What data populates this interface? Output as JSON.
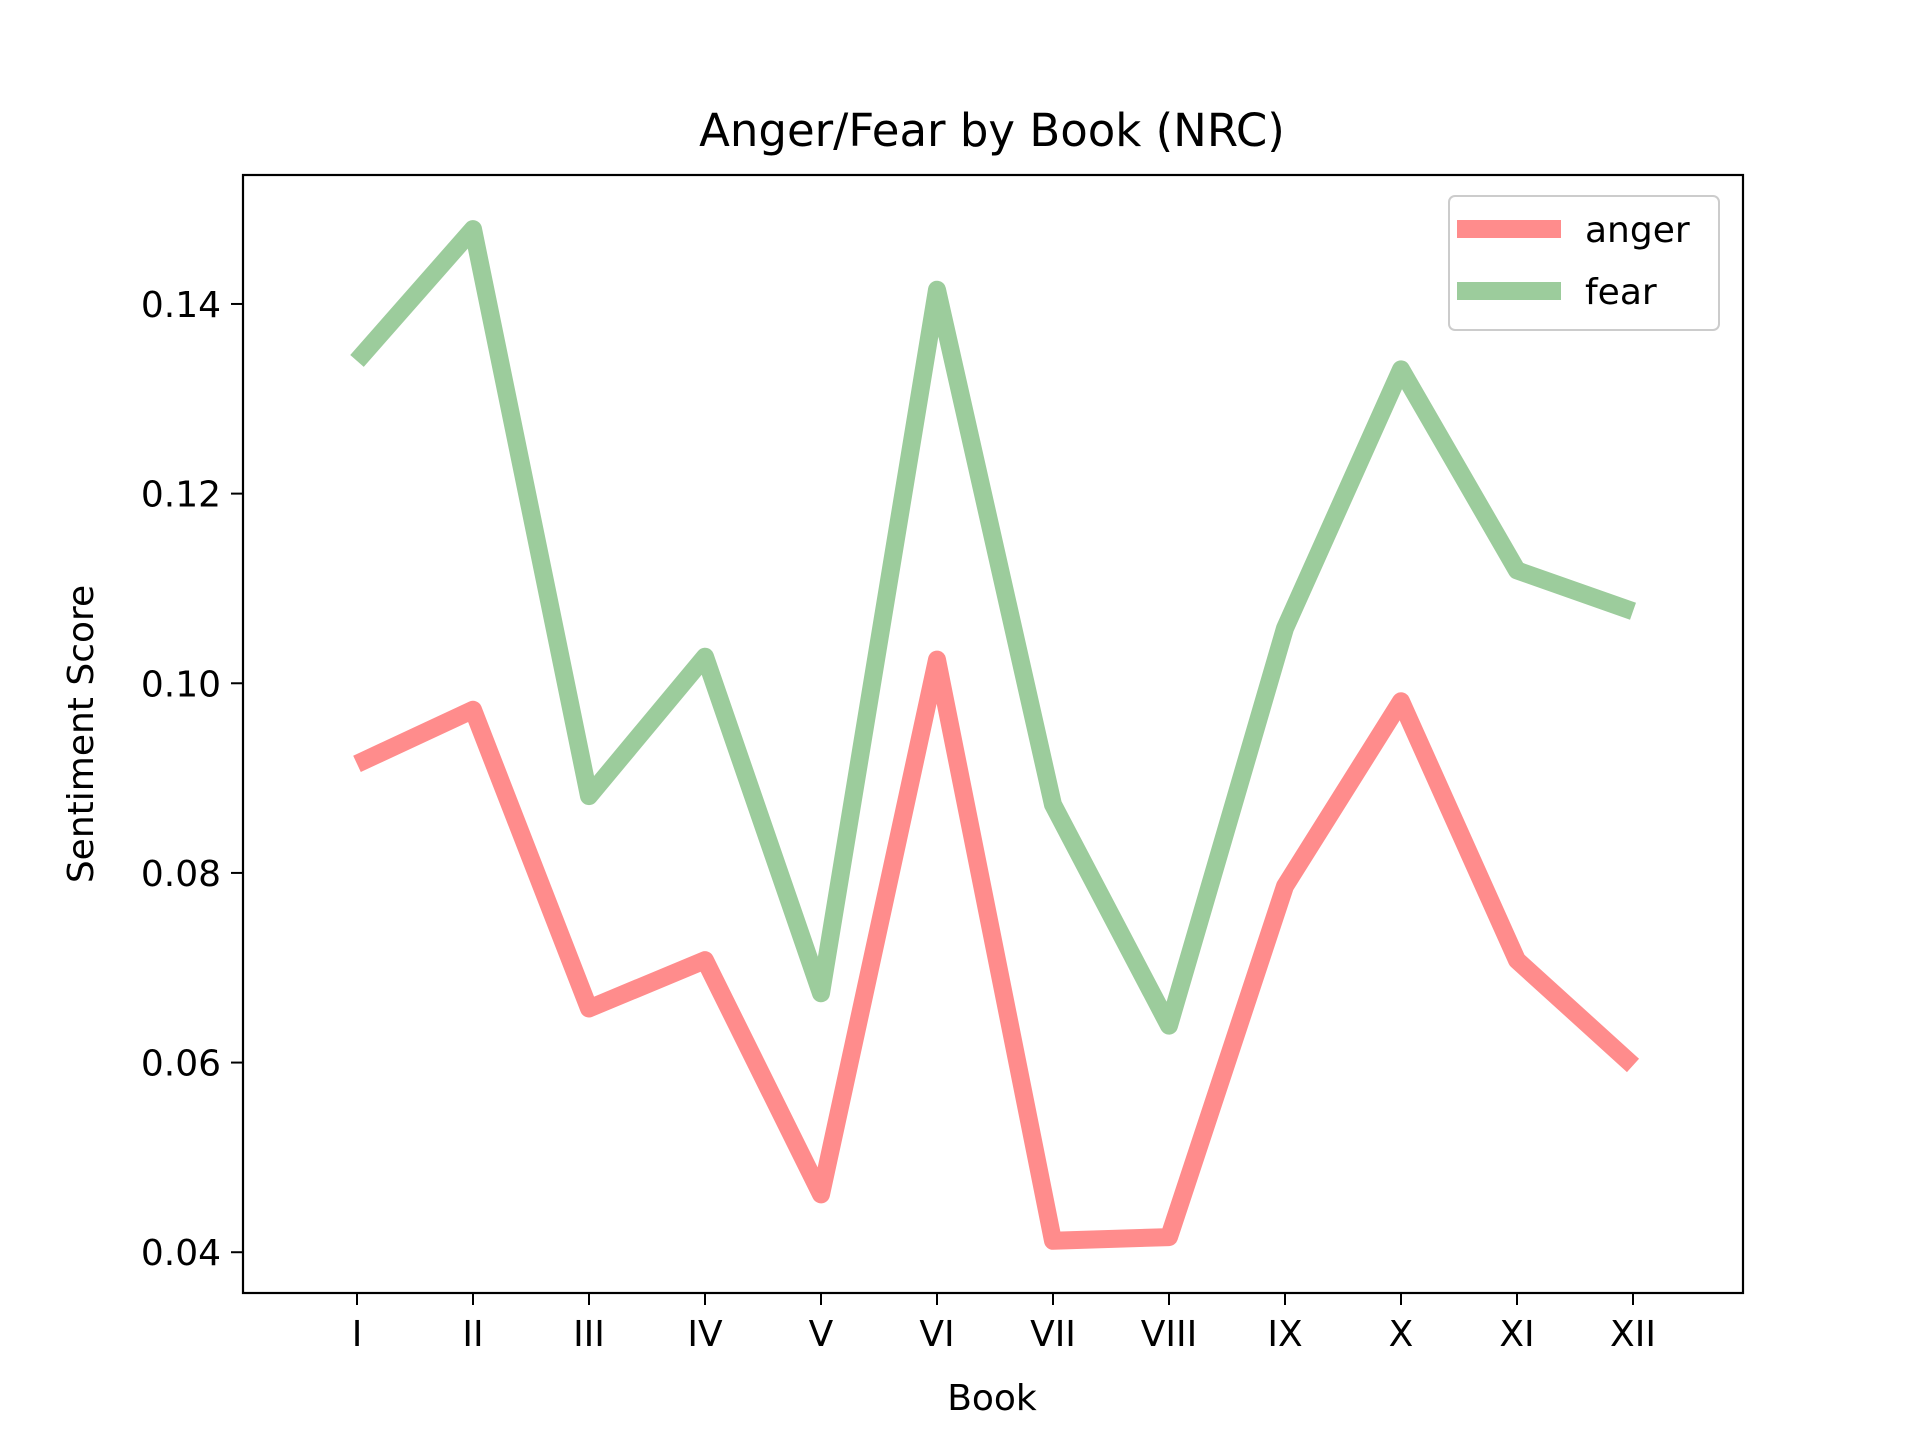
{
  "chart_data": {
    "type": "line",
    "title": "Anger/Fear by Book (NRC)",
    "xlabel": "Book",
    "ylabel": "Sentiment Score",
    "categories": [
      "I",
      "II",
      "III",
      "IV",
      "V",
      "VI",
      "VII",
      "VIII",
      "IX",
      "X",
      "XI",
      "XII"
    ],
    "series": [
      {
        "name": "anger",
        "color": "#ff8c8c",
        "values": [
          0.0915,
          0.0972,
          0.0657,
          0.0708,
          0.0461,
          0.1025,
          0.0412,
          0.0416,
          0.0786,
          0.0981,
          0.0708,
          0.0597
        ]
      },
      {
        "name": "fear",
        "color": "#9ccc9c",
        "values": [
          0.134,
          0.1479,
          0.0881,
          0.1028,
          0.0673,
          0.1415,
          0.0872,
          0.0639,
          0.1058,
          0.1331,
          0.1119,
          0.1076
        ]
      }
    ],
    "yticks": [
      "0.04",
      "0.06",
      "0.08",
      "0.10",
      "0.12",
      "0.14"
    ],
    "ylim": [
      0.0357,
      0.1536
    ],
    "grid": false,
    "legend_position": "upper right"
  }
}
